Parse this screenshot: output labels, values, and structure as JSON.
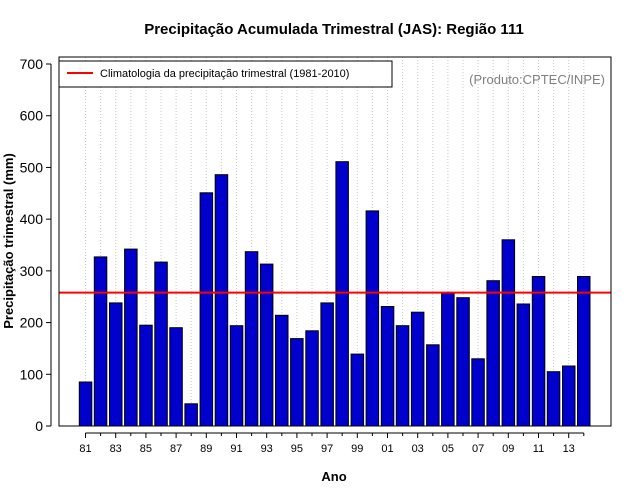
{
  "chart_data": {
    "type": "bar",
    "title": "Precipitação Acumulada Trimestral (JAS): Região 111",
    "xlabel": "Ano",
    "ylabel": "Precipitação trimestral (mm)",
    "ylim": [
      0,
      700
    ],
    "yticks": [
      0,
      100,
      200,
      300,
      400,
      500,
      600,
      700
    ],
    "categories": [
      "81",
      "82",
      "83",
      "84",
      "85",
      "86",
      "87",
      "88",
      "89",
      "90",
      "91",
      "92",
      "93",
      "94",
      "95",
      "96",
      "97",
      "98",
      "99",
      "00",
      "01",
      "02",
      "03",
      "04",
      "05",
      "06",
      "07",
      "08",
      "09",
      "10",
      "11",
      "12",
      "13",
      "14"
    ],
    "xtick_labels": [
      "81",
      "83",
      "85",
      "87",
      "89",
      "91",
      "93",
      "95",
      "97",
      "99",
      "01",
      "03",
      "05",
      "07",
      "09",
      "11",
      "13"
    ],
    "values": [
      85,
      327,
      238,
      342,
      195,
      317,
      190,
      43,
      451,
      486,
      194,
      337,
      313,
      214,
      169,
      184,
      238,
      511,
      139,
      416,
      231,
      194,
      220,
      157,
      257,
      248,
      130,
      281,
      360,
      236,
      289,
      105,
      116,
      289
    ],
    "bar_color": "#0000CD",
    "reference_line": {
      "value": 258,
      "color": "#FF0000",
      "label": "Climatologia da precipitação trimestral (1981-2010)"
    },
    "legend_position": "top-left",
    "credit": "(Produto:CPTEC/INPE)",
    "grid": "vertical dotted"
  }
}
